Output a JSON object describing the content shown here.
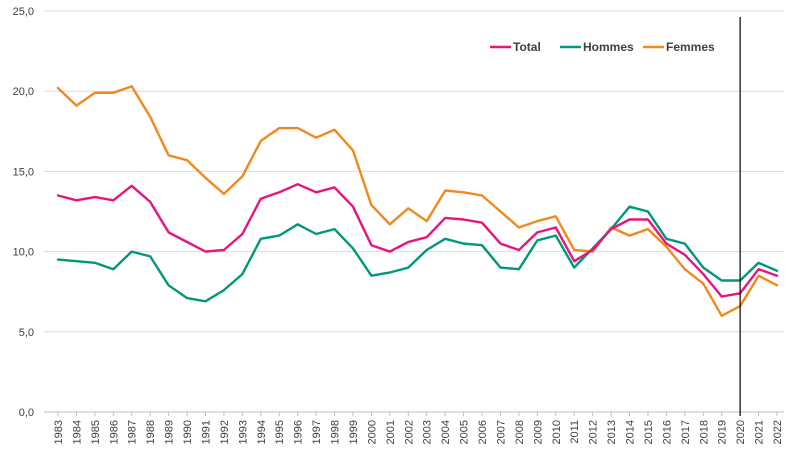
{
  "chart_data": {
    "type": "line",
    "title": "",
    "xlabel": "",
    "ylabel": "",
    "ylim": [
      0,
      25
    ],
    "yticks": [
      "0,0",
      "5,0",
      "10,0",
      "15,0",
      "20,0",
      "25,0"
    ],
    "grid": true,
    "legend_position": "top-right",
    "vertical_marker_at": "2020",
    "categories": [
      "1983",
      "1984",
      "1985",
      "1986",
      "1987",
      "1988",
      "1989",
      "1990",
      "1991",
      "1992",
      "1993",
      "1994",
      "1995",
      "1996",
      "1997",
      "1998",
      "1999",
      "2000",
      "2001",
      "2002",
      "2003",
      "2004",
      "2005",
      "2006",
      "2007",
      "2008",
      "2009",
      "2010",
      "2011",
      "2012",
      "2013",
      "2014",
      "2015",
      "2016",
      "2017",
      "2018",
      "2019",
      "2020",
      "2021",
      "2022"
    ],
    "series": [
      {
        "name": "Total",
        "color": "#e6157e",
        "values": [
          13.5,
          13.2,
          13.4,
          13.2,
          14.1,
          13.1,
          11.2,
          10.6,
          10.0,
          10.1,
          11.1,
          13.3,
          13.7,
          14.2,
          13.7,
          14.0,
          12.8,
          10.4,
          10.0,
          10.6,
          10.9,
          12.1,
          12.0,
          11.8,
          10.5,
          10.1,
          11.2,
          11.5,
          9.4,
          10.1,
          11.4,
          12.0,
          12.0,
          10.5,
          9.8,
          8.6,
          7.2,
          7.4,
          8.9,
          8.5
        ]
      },
      {
        "name": "Hommes",
        "color": "#00977a",
        "values": [
          9.5,
          9.4,
          9.3,
          8.9,
          10.0,
          9.7,
          7.9,
          7.1,
          6.9,
          7.6,
          8.6,
          10.8,
          11.0,
          11.7,
          11.1,
          11.4,
          10.2,
          8.5,
          8.7,
          9.0,
          10.1,
          10.8,
          10.5,
          10.4,
          9.0,
          8.9,
          10.7,
          11.0,
          9.0,
          10.2,
          11.4,
          12.8,
          12.5,
          10.8,
          10.5,
          9.0,
          8.2,
          8.2,
          9.3,
          8.8
        ]
      },
      {
        "name": "Femmes",
        "color": "#f0891e",
        "values": [
          20.2,
          19.1,
          19.9,
          19.9,
          20.3,
          18.4,
          16.0,
          15.7,
          14.6,
          13.6,
          14.7,
          16.9,
          17.7,
          17.7,
          17.1,
          17.6,
          16.3,
          12.9,
          11.7,
          12.7,
          11.9,
          13.8,
          13.7,
          13.5,
          12.5,
          11.5,
          11.9,
          12.2,
          10.1,
          10.0,
          11.5,
          11.0,
          11.4,
          10.3,
          8.9,
          8.0,
          6.0,
          6.6,
          8.5,
          7.9
        ]
      }
    ]
  }
}
